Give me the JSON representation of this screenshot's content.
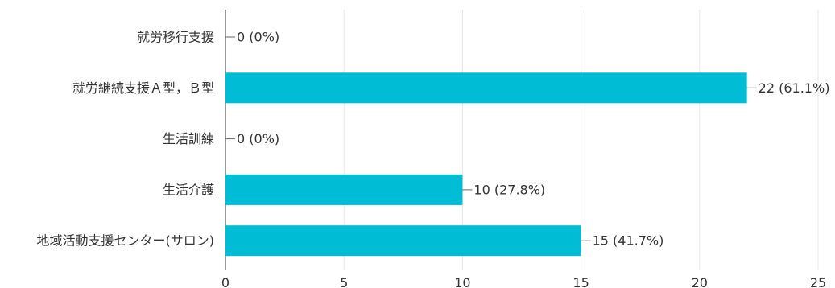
{
  "chart_data": {
    "type": "bar",
    "orientation": "horizontal",
    "categories": [
      "就労移行支援",
      "就労継続支援Ａ型，Ｂ型",
      "生活訓練",
      "生活介護",
      "地域活動支援センター(サロン)"
    ],
    "values": [
      0,
      22,
      0,
      10,
      15
    ],
    "data_labels": [
      "0 (0%)",
      "22 (61.1%)",
      "0 (0%)",
      "10 (27.8%)",
      "15 (41.7%)"
    ],
    "xlim": [
      0,
      25
    ],
    "x_ticks": [
      0,
      5,
      10,
      15,
      20,
      25
    ],
    "grid": true,
    "bar_color": "#00bcd4",
    "legend": "none"
  }
}
